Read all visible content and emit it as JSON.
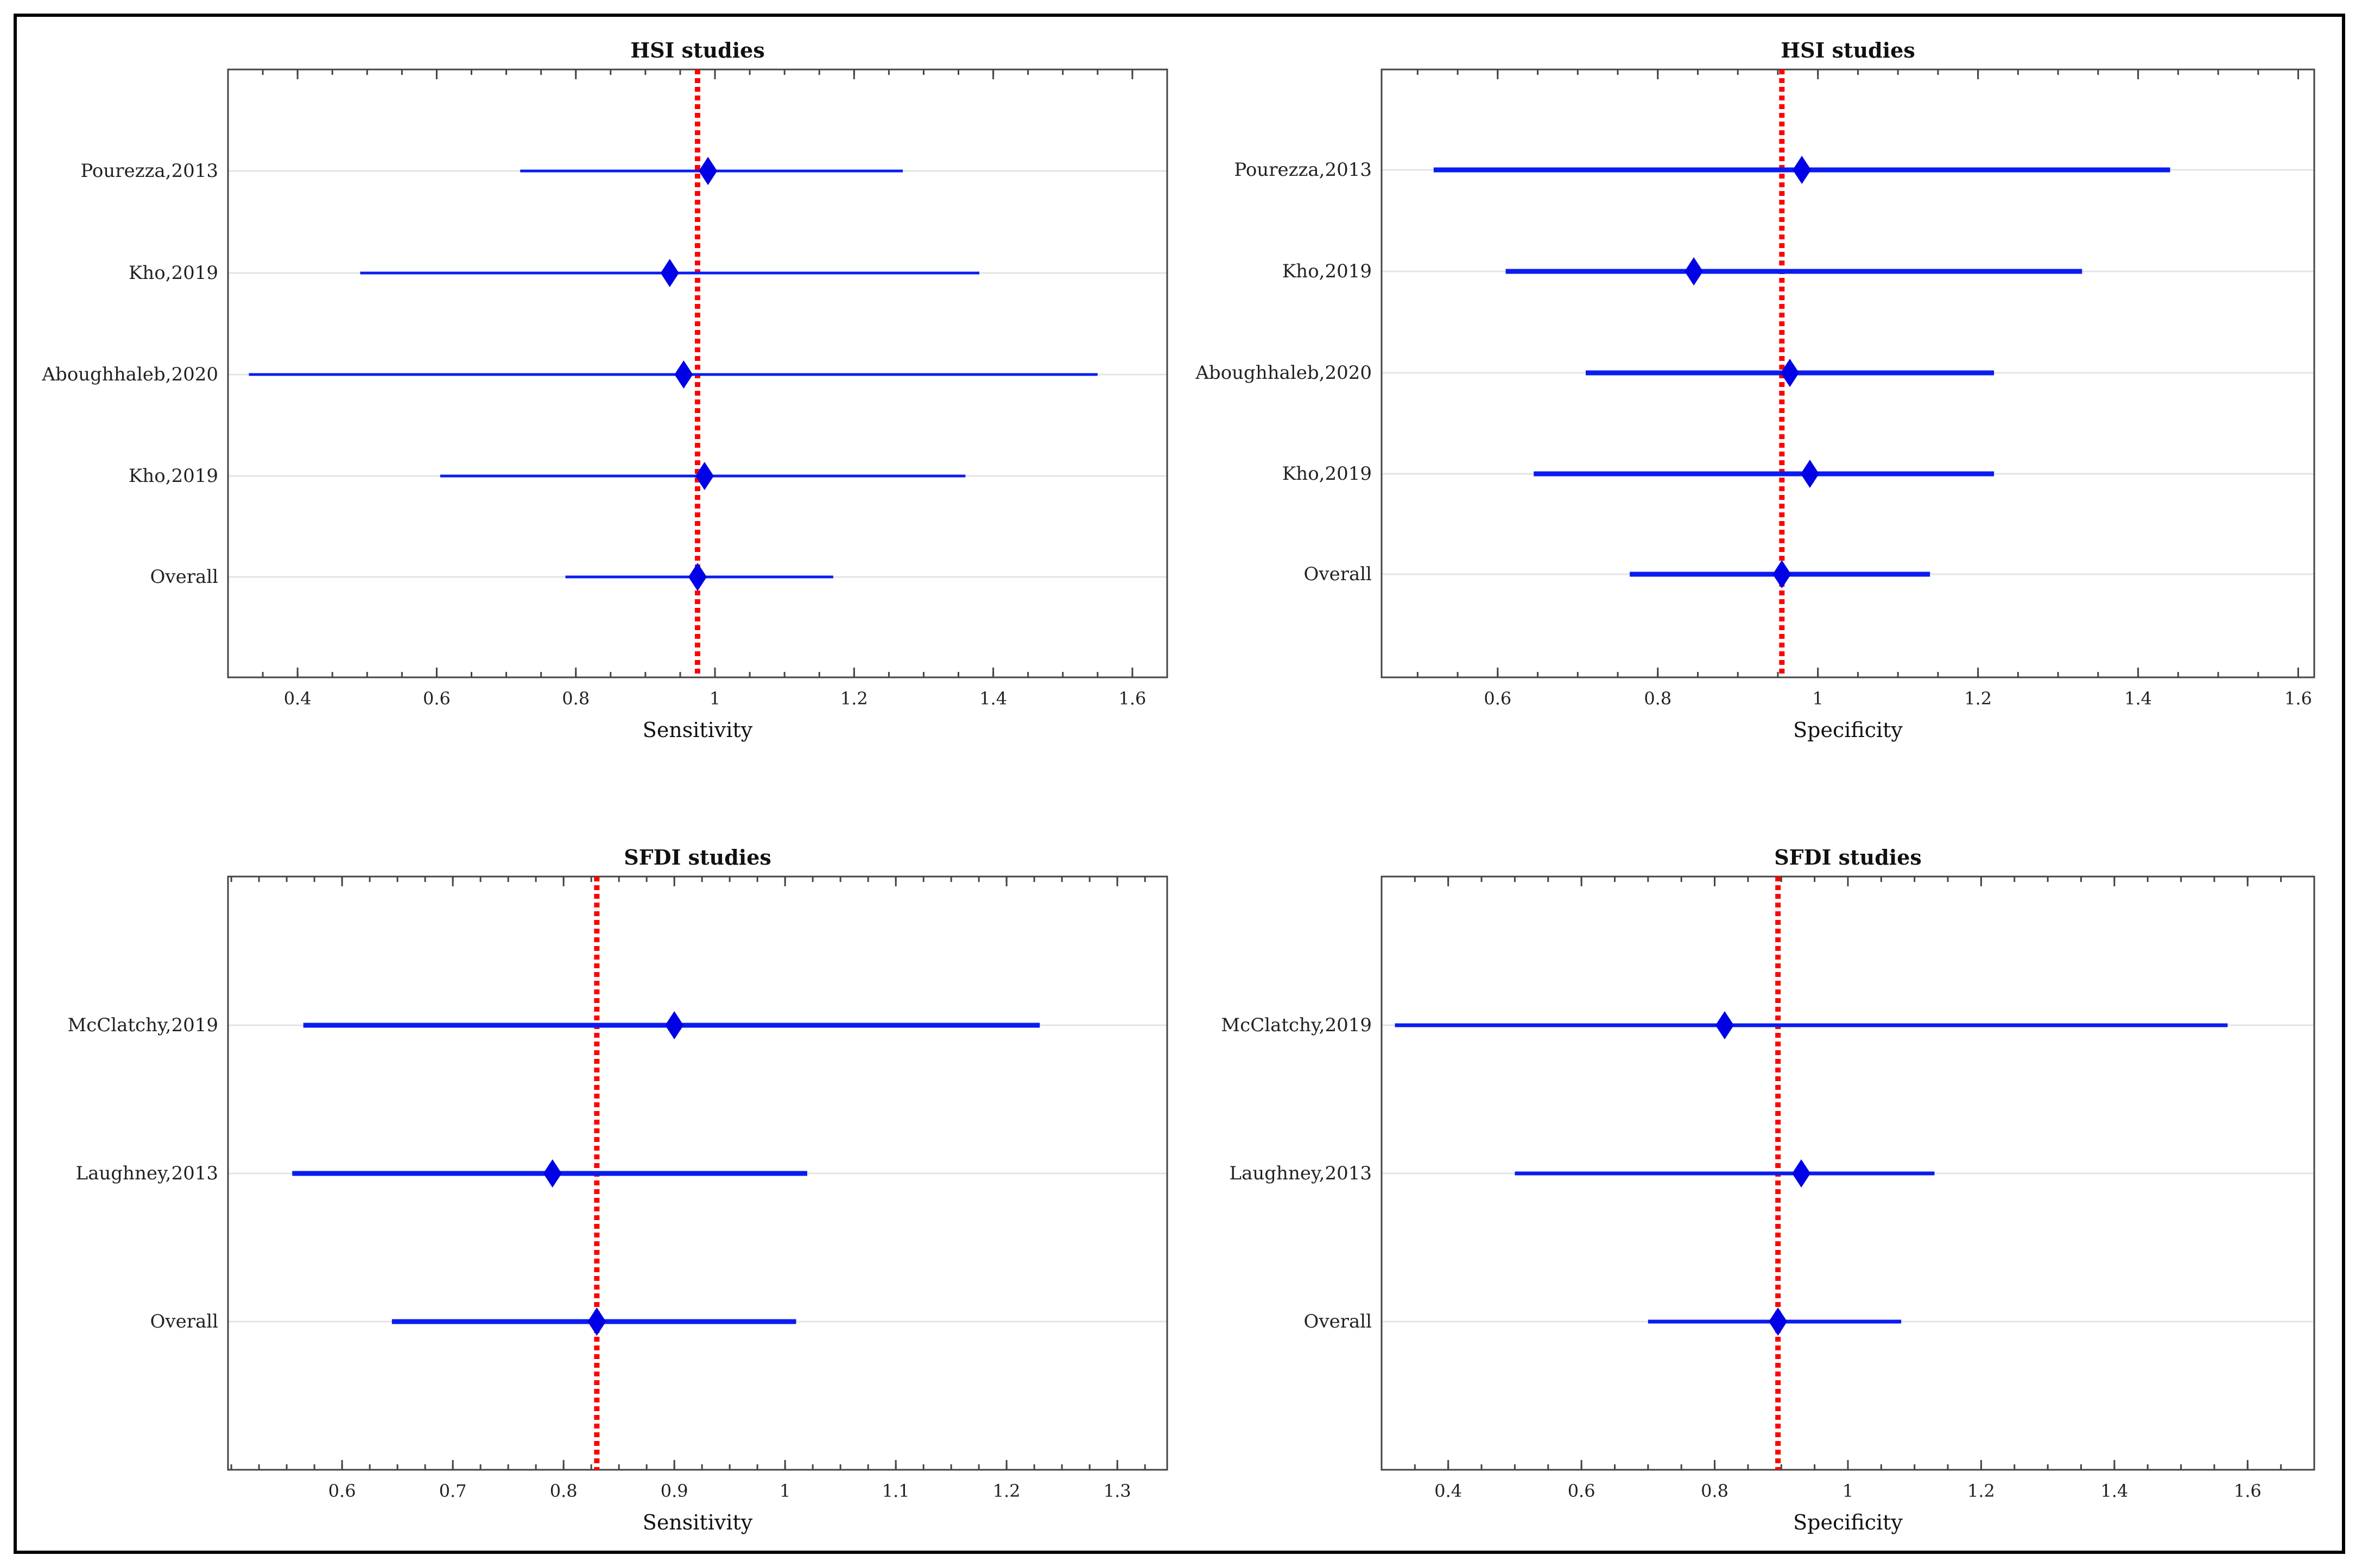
{
  "chart_data": [
    {
      "type": "forest",
      "title": "HSI studies",
      "xlabel": "Sensitivity",
      "xlim": [
        0.3,
        1.65
      ],
      "xticks": [
        "0.4",
        "0.6",
        "0.8",
        "1",
        "1.2",
        "1.4",
        "1.6"
      ],
      "reference_line": 0.975,
      "colors": {
        "marker": "#0000e6",
        "interval": "#0a1cf0",
        "reference": "#ff0000"
      },
      "rows": [
        {
          "label": "Pourezza,2013",
          "estimate": 0.99,
          "lower": 0.72,
          "upper": 1.27
        },
        {
          "label": "Kho,2019",
          "estimate": 0.935,
          "lower": 0.49,
          "upper": 1.38
        },
        {
          "label": "Aboughhaleb,2020",
          "estimate": 0.955,
          "lower": 0.33,
          "upper": 1.55
        },
        {
          "label": "Kho,2019",
          "estimate": 0.985,
          "lower": 0.605,
          "upper": 1.36
        },
        {
          "label": "Overall",
          "estimate": 0.975,
          "lower": 0.785,
          "upper": 1.17
        }
      ]
    },
    {
      "type": "forest",
      "title": "HSI studies",
      "xlabel": "Specificity",
      "xlim": [
        0.455,
        1.62
      ],
      "xticks": [
        "0.6",
        "0.8",
        "1",
        "1.2",
        "1.4",
        "1.6"
      ],
      "reference_line": 0.955,
      "colors": {
        "marker": "#0000e6",
        "interval": "#0a1cf0",
        "reference": "#ff0000"
      },
      "rows": [
        {
          "label": "Pourezza,2013",
          "estimate": 0.98,
          "lower": 0.52,
          "upper": 1.44
        },
        {
          "label": "Kho,2019",
          "estimate": 0.845,
          "lower": 0.61,
          "upper": 1.33
        },
        {
          "label": "Aboughhaleb,2020",
          "estimate": 0.965,
          "lower": 0.71,
          "upper": 1.22
        },
        {
          "label": "Kho,2019",
          "estimate": 0.99,
          "lower": 0.645,
          "upper": 1.22
        },
        {
          "label": "Overall",
          "estimate": 0.955,
          "lower": 0.765,
          "upper": 1.14
        }
      ]
    },
    {
      "type": "forest",
      "title": "SFDI studies",
      "xlabel": "Sensitivity",
      "xlim": [
        0.497,
        1.345
      ],
      "xticks": [
        "0.6",
        "0.7",
        "0.8",
        "0.9",
        "1",
        "1.1",
        "1.2",
        "1.3"
      ],
      "reference_line": 0.83,
      "colors": {
        "marker": "#0000e6",
        "interval": "#0a1cf0",
        "reference": "#ff0000"
      },
      "rows": [
        {
          "label": "McClatchy,2019",
          "estimate": 0.9,
          "lower": 0.565,
          "upper": 1.23
        },
        {
          "label": "Laughney,2013",
          "estimate": 0.79,
          "lower": 0.555,
          "upper": 1.02
        },
        {
          "label": "Overall",
          "estimate": 0.83,
          "lower": 0.645,
          "upper": 1.01
        }
      ]
    },
    {
      "type": "forest",
      "title": "SFDI studies",
      "xlabel": "Specificity",
      "xlim": [
        0.3,
        1.7
      ],
      "xticks": [
        "0.4",
        "0.6",
        "0.8",
        "1",
        "1.2",
        "1.4",
        "1.6"
      ],
      "reference_line": 0.895,
      "colors": {
        "marker": "#0000e6",
        "interval": "#0a1cf0",
        "reference": "#ff0000"
      },
      "rows": [
        {
          "label": "McClatchy,2019",
          "estimate": 0.815,
          "lower": 0.32,
          "upper": 1.57
        },
        {
          "label": "Laughney,2013",
          "estimate": 0.93,
          "lower": 0.5,
          "upper": 1.13
        },
        {
          "label": "Overall",
          "estimate": 0.895,
          "lower": 0.7,
          "upper": 1.08
        }
      ]
    }
  ]
}
